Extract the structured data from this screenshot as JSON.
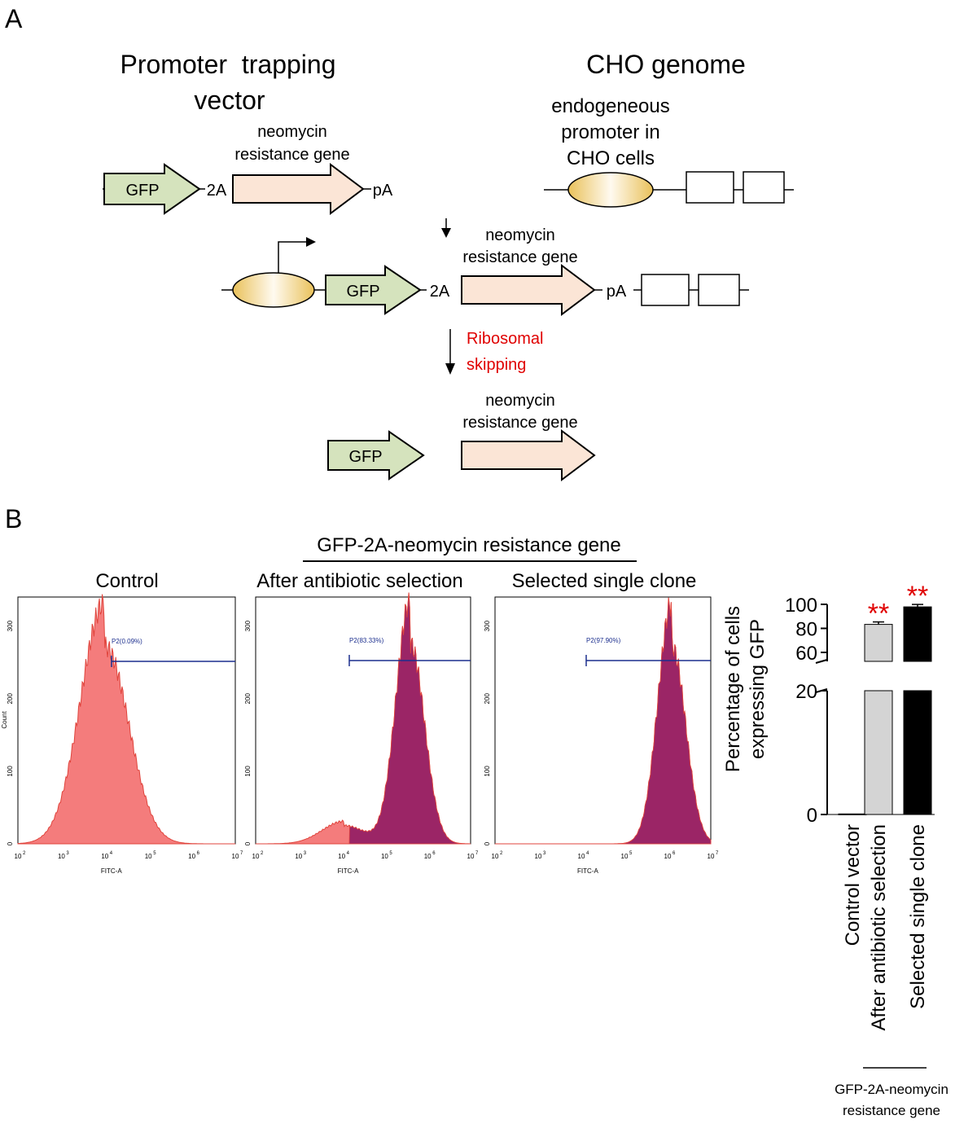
{
  "panel_labels": {
    "a": "A",
    "b": "B"
  },
  "panel_a": {
    "vector_title_line1": "Promoter  trapping",
    "vector_title_line2": "vector",
    "genome_title": "CHO genome",
    "promoter_label_line1": "endogeneous",
    "promoter_label_line2": "promoter in",
    "promoter_label_line3": "CHO cells",
    "neo_label_line1": "neomycin",
    "neo_label_line2": "resistance gene",
    "gfp": "GFP",
    "t2a": "2A",
    "polya": "pA",
    "ribosomal_line1": "Ribosomal",
    "ribosomal_line2": "skipping",
    "colors": {
      "gfp_fill": "#d5e3bd",
      "neo_fill": "#fbe5d6",
      "red_text": "#e00000",
      "promoter_edge": "#e9c15a"
    }
  },
  "panel_b": {
    "group_title": "GFP-2A-neomycin resistance gene",
    "hist_titles": [
      "Control",
      "After antibiotic selection",
      "Selected single clone"
    ],
    "hist_xlabel": "FITC-A",
    "hist_ylabel": "Count",
    "hist_yticks": [
      "0",
      "100",
      "200",
      "300"
    ],
    "hist_xtick_exponents": [
      "2",
      "3",
      "4",
      "5",
      "6",
      "7"
    ],
    "hist_xtick_base": "10",
    "gates": [
      "P2(0.09%)",
      "P2(83.33%)",
      "P2(97.90%)"
    ],
    "colors": {
      "hist_fill": "#f47c7c",
      "hist_edge": "#e0443c",
      "gate_fill": "#9b2566",
      "gate_line": "#1c2f8e"
    }
  },
  "chart_data": {
    "type": "bar",
    "categories": [
      "Control vector",
      "After antibiotic selection",
      "Selected single clone"
    ],
    "values": [
      0.09,
      83.33,
      97.9
    ],
    "ylabel_line1": "Percentage of cells",
    "ylabel_line2": "expressing GFP",
    "yticks_lower": [
      "0",
      "20"
    ],
    "yticks_upper": [
      "60",
      "80",
      "100"
    ],
    "y_break": [
      20,
      50
    ],
    "ylim": [
      0,
      100
    ],
    "significance": [
      "",
      "**",
      "**"
    ],
    "bar_colors": [
      "#ffffff",
      "#d4d4d4",
      "#000000"
    ],
    "group_label_line1": "GFP-2A-neomycin",
    "group_label_line2": "resistance gene",
    "significance_color": "#e00000"
  }
}
